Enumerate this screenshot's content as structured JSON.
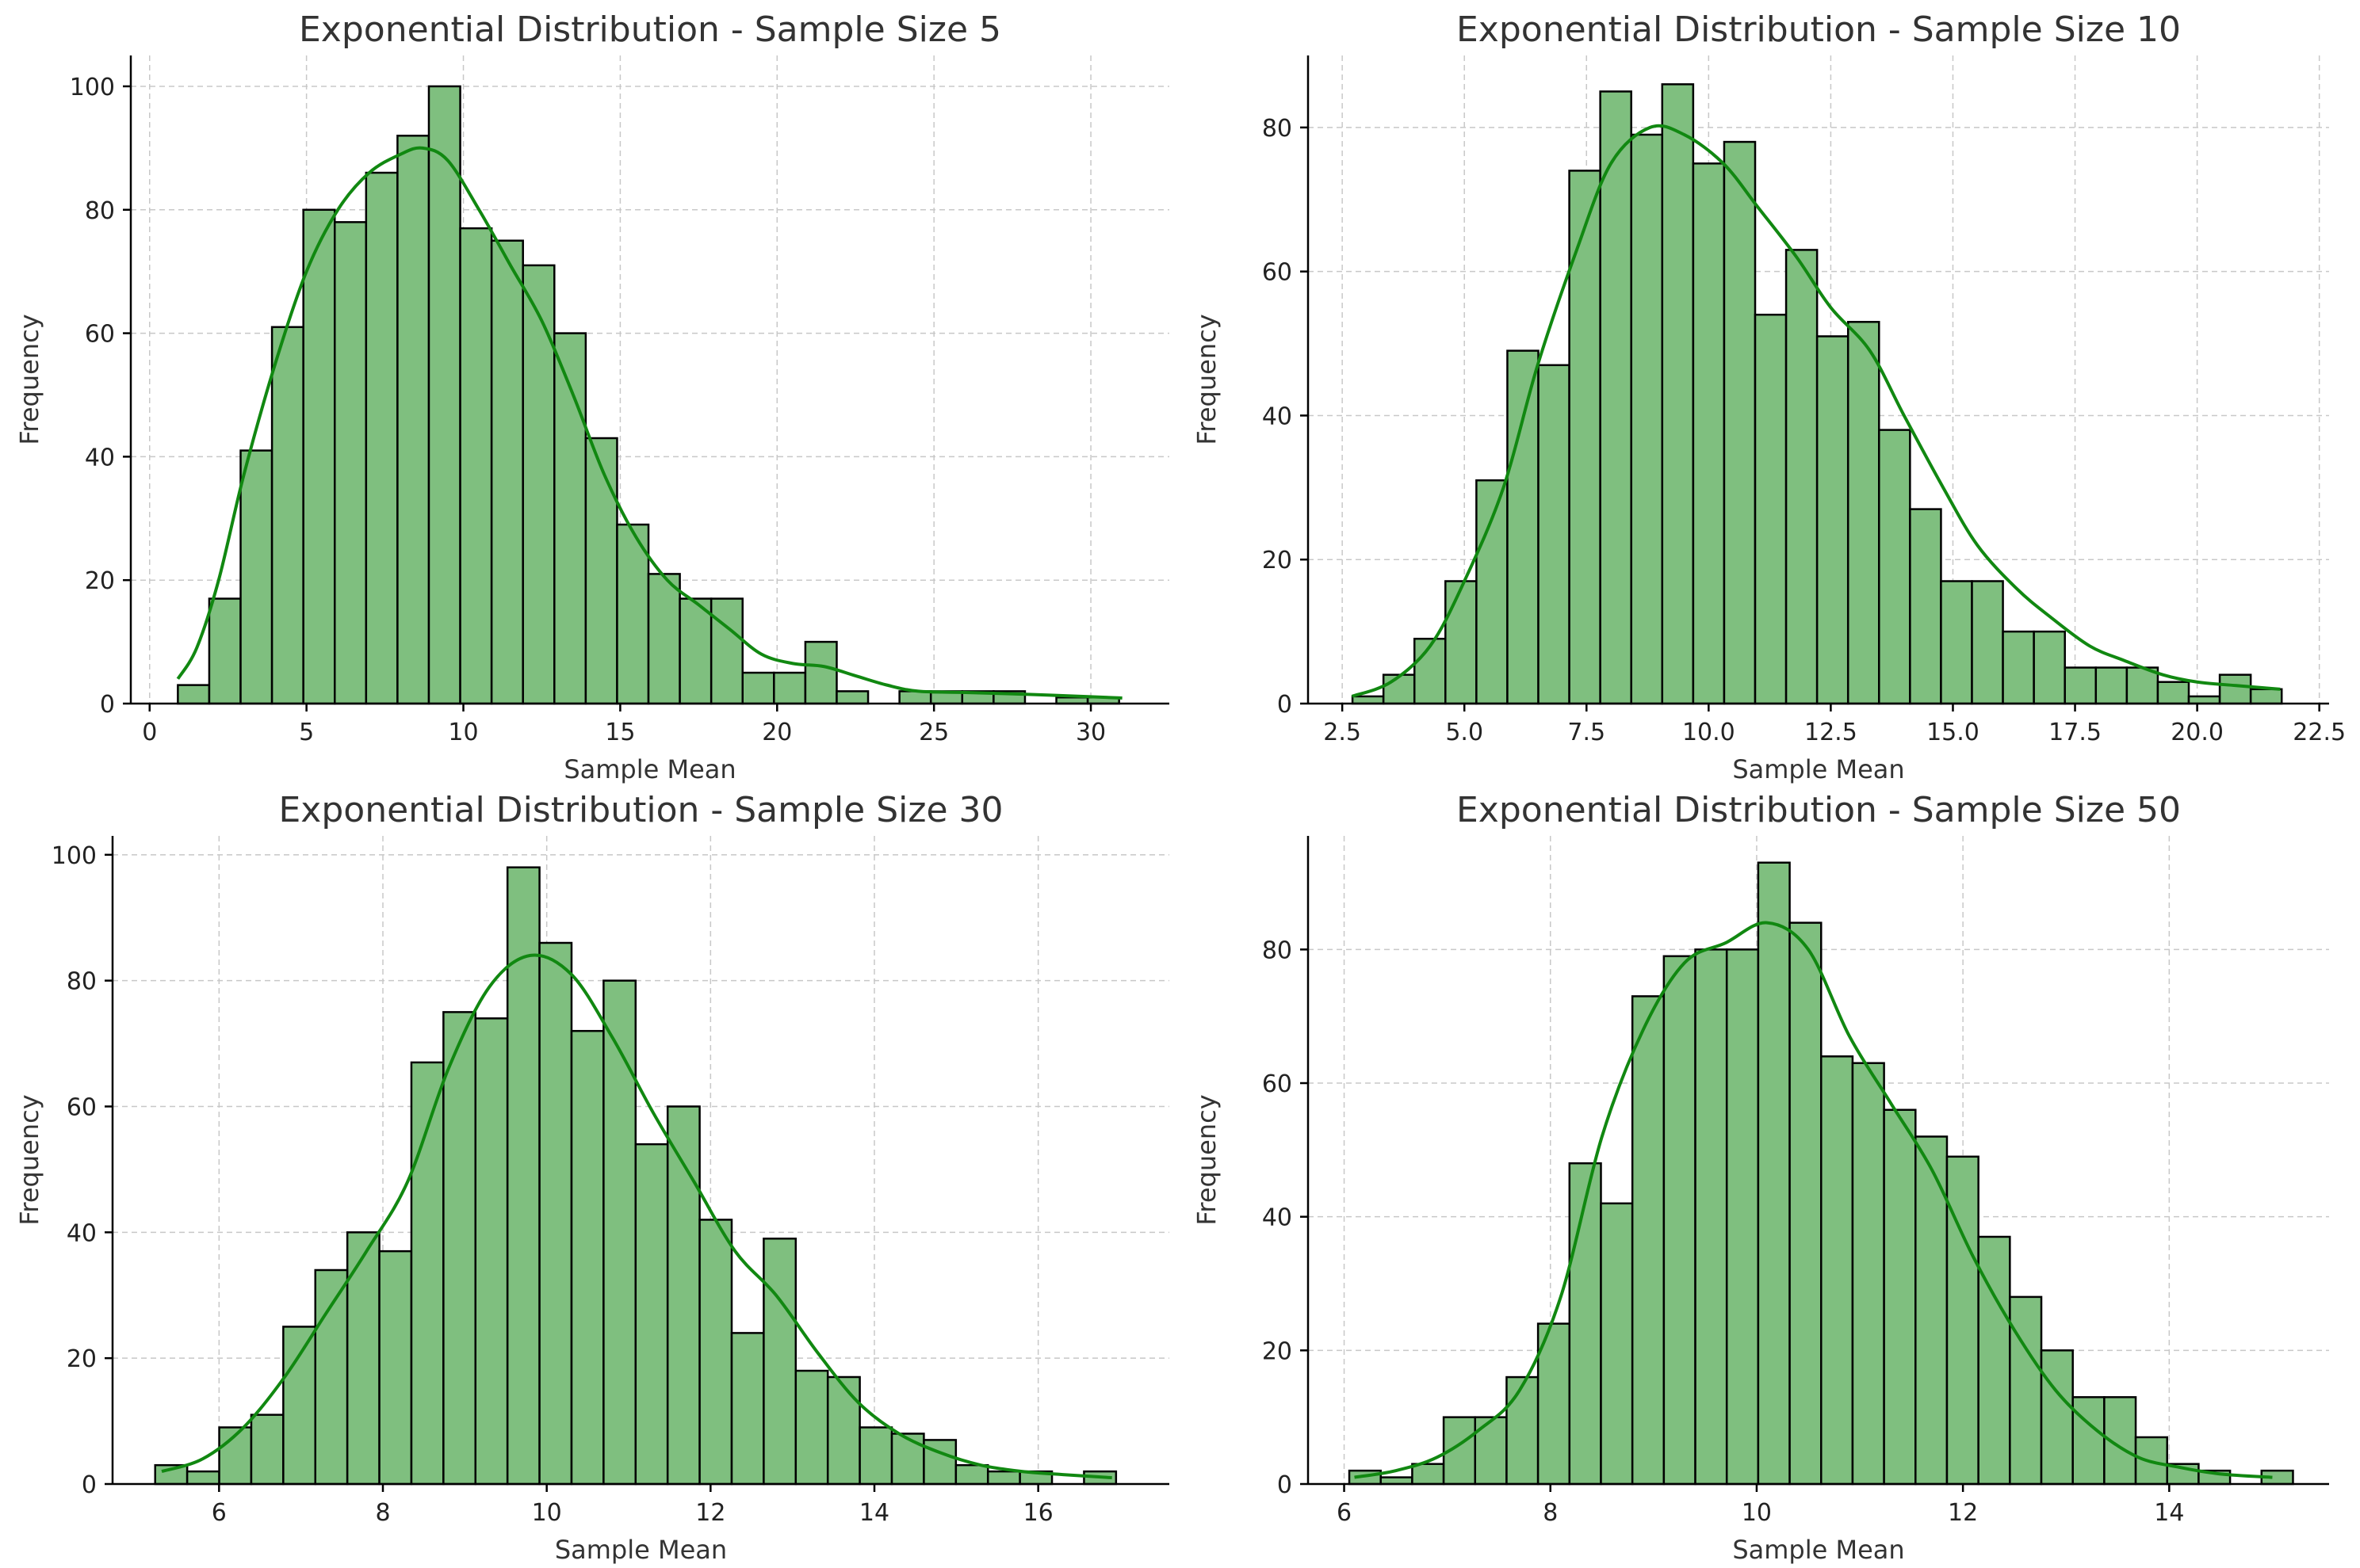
{
  "colors": {
    "bar_fill": "#7fbf7f",
    "bar_edge": "#000000",
    "kde": "#118811",
    "grid": "#c8c8c8"
  },
  "chart_data": [
    {
      "type": "bar",
      "title": "Exponential Distribution - Sample Size 5",
      "xlabel": "Sample Mean",
      "ylabel": "Frequency",
      "xlim": [
        -0.6,
        32.5
      ],
      "ylim": [
        0,
        105
      ],
      "xticks": [
        0,
        5,
        10,
        15,
        20,
        25,
        30
      ],
      "xtick_labels": [
        "0",
        "5",
        "10",
        "15",
        "20",
        "25",
        "30"
      ],
      "yticks": [
        0,
        20,
        40,
        60,
        80,
        100
      ],
      "ytick_labels": [
        "0",
        "20",
        "40",
        "60",
        "80",
        "100"
      ],
      "bin_start": 0.9,
      "bin_width": 1.0,
      "values": [
        3,
        17,
        41,
        61,
        80,
        78,
        86,
        92,
        100,
        77,
        75,
        71,
        60,
        43,
        29,
        21,
        17,
        17,
        5,
        5,
        10,
        2,
        0,
        2,
        2,
        2,
        2,
        0,
        1,
        1
      ],
      "kde": {
        "x": [
          0.9,
          1.5,
          2.2,
          3.0,
          4.0,
          5.0,
          6.0,
          7.0,
          8.0,
          8.7,
          9.5,
          10.5,
          11.5,
          12.5,
          13.5,
          14.5,
          15.5,
          16.5,
          17.5,
          18.5,
          19.5,
          20.5,
          21.5,
          22.5,
          23.5,
          24.5,
          26.0,
          28.0,
          30.0,
          31.0
        ],
        "y": [
          4,
          9,
          20,
          37,
          55,
          70,
          80,
          86,
          89,
          90,
          88,
          80,
          71,
          62,
          50,
          37,
          27,
          20,
          16,
          12,
          8,
          6.5,
          6,
          4.5,
          3,
          2,
          1.8,
          1.5,
          1.1,
          0.9
        ]
      },
      "grid": true
    },
    {
      "type": "bar",
      "title": "Exponential Distribution - Sample Size 10",
      "xlabel": "Sample Mean",
      "ylabel": "Frequency",
      "xlim": [
        1.8,
        22.7
      ],
      "ylim": [
        0,
        90
      ],
      "xticks": [
        2.5,
        5.0,
        7.5,
        10.0,
        12.5,
        15.0,
        17.5,
        20.0,
        22.5
      ],
      "xtick_labels": [
        "2.5",
        "5.0",
        "7.5",
        "10.0",
        "12.5",
        "15.0",
        "17.5",
        "20.0",
        "22.5"
      ],
      "yticks": [
        0,
        20,
        40,
        60,
        80
      ],
      "ytick_labels": [
        "0",
        "20",
        "40",
        "60",
        "80"
      ],
      "bin_start": 2.71,
      "bin_width": 0.634,
      "values": [
        1,
        4,
        9,
        17,
        31,
        49,
        47,
        74,
        85,
        79,
        86,
        75,
        78,
        54,
        63,
        51,
        53,
        38,
        27,
        17,
        17,
        10,
        10,
        5,
        5,
        5,
        3,
        1,
        4,
        2
      ],
      "kde": {
        "x": [
          2.7,
          3.5,
          4.3,
          5.0,
          5.8,
          6.5,
          7.3,
          8.0,
          8.8,
          9.5,
          10.3,
          11.0,
          11.8,
          12.5,
          13.3,
          14.0,
          14.8,
          15.5,
          16.3,
          17.0,
          17.8,
          18.5,
          19.3,
          20.0,
          20.8,
          21.7
        ],
        "y": [
          1,
          3,
          8,
          17,
          30,
          47,
          63,
          75,
          80,
          79,
          75,
          69,
          62,
          55,
          49,
          40,
          30,
          22,
          16,
          12,
          8,
          6,
          4,
          3,
          2.5,
          2
        ]
      },
      "grid": true
    },
    {
      "type": "bar",
      "title": "Exponential Distribution - Sample Size 30",
      "xlabel": "Sample Mean",
      "ylabel": "Frequency",
      "xlim": [
        4.7,
        17.6
      ],
      "ylim": [
        0,
        103
      ],
      "xticks": [
        6,
        8,
        10,
        12,
        14,
        16
      ],
      "xtick_labels": [
        "6",
        "8",
        "10",
        "12",
        "14",
        "16"
      ],
      "yticks": [
        0,
        20,
        40,
        60,
        80,
        100
      ],
      "ytick_labels": [
        "0",
        "20",
        "40",
        "60",
        "80",
        "100"
      ],
      "bin_start": 5.22,
      "bin_width": 0.391,
      "values": [
        3,
        2,
        9,
        11,
        25,
        34,
        40,
        37,
        67,
        75,
        74,
        98,
        86,
        72,
        80,
        54,
        60,
        42,
        24,
        39,
        18,
        17,
        9,
        8,
        7,
        3,
        2,
        2,
        0,
        2
      ],
      "kde": {
        "x": [
          5.3,
          5.8,
          6.3,
          6.8,
          7.3,
          7.8,
          8.3,
          8.8,
          9.3,
          9.8,
          10.3,
          10.8,
          11.3,
          11.8,
          12.3,
          12.8,
          13.3,
          13.8,
          14.3,
          14.8,
          15.3,
          15.8,
          16.3,
          16.9
        ],
        "y": [
          2,
          4,
          9,
          17,
          27,
          37,
          48,
          66,
          79,
          84,
          81,
          71,
          59,
          48,
          37,
          30,
          21,
          13,
          8,
          5,
          3,
          2,
          1.5,
          1
        ]
      },
      "grid": true
    },
    {
      "type": "bar",
      "title": "Exponential Distribution - Sample Size 50",
      "xlabel": "Sample Mean",
      "ylabel": "Frequency",
      "xlim": [
        5.65,
        15.55
      ],
      "ylim": [
        0,
        97
      ],
      "xticks": [
        6,
        8,
        10,
        12,
        14
      ],
      "xtick_labels": [
        "6",
        "8",
        "10",
        "12",
        "14"
      ],
      "yticks": [
        0,
        20,
        40,
        60,
        80
      ],
      "ytick_labels": [
        "0",
        "20",
        "40",
        "60",
        "80"
      ],
      "bin_start": 6.05,
      "bin_width": 0.305,
      "values": [
        2,
        1,
        3,
        10,
        10,
        16,
        24,
        48,
        42,
        73,
        79,
        80,
        80,
        93,
        84,
        64,
        63,
        56,
        52,
        49,
        37,
        28,
        20,
        13,
        13,
        7,
        3,
        2,
        0,
        2
      ],
      "kde": {
        "x": [
          6.1,
          6.5,
          6.9,
          7.3,
          7.7,
          8.1,
          8.5,
          8.9,
          9.3,
          9.7,
          10.1,
          10.5,
          10.9,
          11.3,
          11.7,
          12.1,
          12.5,
          12.9,
          13.3,
          13.7,
          14.1,
          14.5,
          15.0
        ],
        "y": [
          1,
          2,
          4,
          8,
          14,
          28,
          52,
          68,
          78,
          81,
          84,
          80,
          67,
          57,
          47,
          34,
          23,
          14,
          8,
          4,
          2.5,
          1.5,
          1
        ]
      },
      "grid": true
    }
  ]
}
